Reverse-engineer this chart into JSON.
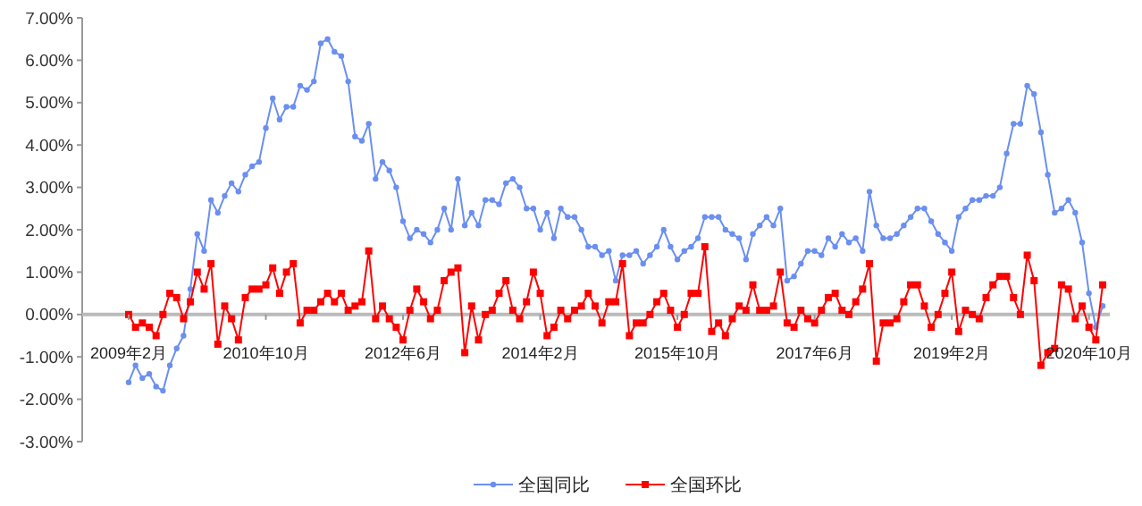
{
  "chart_data": {
    "type": "line",
    "categories": [
      "2009年2月",
      null,
      null,
      null,
      null,
      null,
      null,
      null,
      null,
      null,
      null,
      null,
      null,
      null,
      null,
      null,
      null,
      null,
      null,
      null,
      "2010年10月",
      null,
      null,
      null,
      null,
      null,
      null,
      null,
      null,
      null,
      null,
      null,
      null,
      null,
      null,
      null,
      null,
      null,
      null,
      null,
      "2012年6月",
      null,
      null,
      null,
      null,
      null,
      null,
      null,
      null,
      null,
      null,
      null,
      null,
      null,
      null,
      null,
      null,
      null,
      null,
      null,
      "2014年2月",
      null,
      null,
      null,
      null,
      null,
      null,
      null,
      null,
      null,
      null,
      null,
      null,
      null,
      null,
      null,
      null,
      null,
      null,
      null,
      "2015年10月",
      null,
      null,
      null,
      null,
      null,
      null,
      null,
      null,
      null,
      null,
      null,
      null,
      null,
      null,
      null,
      null,
      null,
      null,
      null,
      "2017年6月",
      null,
      null,
      null,
      null,
      null,
      null,
      null,
      null,
      null,
      null,
      null,
      null,
      null,
      null,
      null,
      null,
      null,
      null,
      null,
      "2019年2月",
      null,
      null,
      null,
      null,
      null,
      null,
      null,
      null,
      null,
      null,
      null,
      null,
      null,
      null,
      null,
      null,
      null,
      null,
      null,
      "2020年10月",
      null,
      null
    ],
    "series": [
      {
        "name": "全国同比",
        "color": "#6b8ff0",
        "marker": "circle",
        "values": [
          -1.6,
          -1.2,
          -1.5,
          -1.4,
          -1.7,
          -1.8,
          -1.2,
          -0.8,
          -0.5,
          0.6,
          1.9,
          1.5,
          2.7,
          2.4,
          2.8,
          3.1,
          2.9,
          3.3,
          3.5,
          3.6,
          4.4,
          5.1,
          4.6,
          4.9,
          4.9,
          5.4,
          5.3,
          5.5,
          6.4,
          6.5,
          6.2,
          6.1,
          5.5,
          4.2,
          4.1,
          4.5,
          3.2,
          3.6,
          3.4,
          3.0,
          2.2,
          1.8,
          2.0,
          1.9,
          1.7,
          2.0,
          2.5,
          2.0,
          3.2,
          2.1,
          2.4,
          2.1,
          2.7,
          2.7,
          2.6,
          3.1,
          3.2,
          3.0,
          2.5,
          2.5,
          2.0,
          2.4,
          1.8,
          2.5,
          2.3,
          2.3,
          2.0,
          1.6,
          1.6,
          1.4,
          1.5,
          0.8,
          1.4,
          1.4,
          1.5,
          1.2,
          1.4,
          1.6,
          2.0,
          1.6,
          1.3,
          1.5,
          1.6,
          1.8,
          2.3,
          2.3,
          2.3,
          2.0,
          1.9,
          1.8,
          1.3,
          1.9,
          2.1,
          2.3,
          2.1,
          2.5,
          0.8,
          0.9,
          1.2,
          1.5,
          1.5,
          1.4,
          1.8,
          1.6,
          1.9,
          1.7,
          1.8,
          1.5,
          2.9,
          2.1,
          1.8,
          1.8,
          1.9,
          2.1,
          2.3,
          2.5,
          2.5,
          2.2,
          1.9,
          1.7,
          1.5,
          2.3,
          2.5,
          2.7,
          2.7,
          2.8,
          2.8,
          3.0,
          3.8,
          4.5,
          4.5,
          5.4,
          5.2,
          4.3,
          3.3,
          2.4,
          2.5,
          2.7,
          2.4,
          1.7,
          0.5,
          -0.3,
          0.2
        ]
      },
      {
        "name": "全国环比",
        "color": "#ff0000",
        "marker": "square",
        "values": [
          0.0,
          -0.3,
          -0.2,
          -0.3,
          -0.5,
          0.0,
          0.5,
          0.4,
          -0.1,
          0.3,
          1.0,
          0.6,
          1.2,
          -0.7,
          0.2,
          -0.1,
          -0.6,
          0.4,
          0.6,
          0.6,
          0.7,
          1.1,
          0.5,
          1.0,
          1.2,
          -0.2,
          0.1,
          0.1,
          0.3,
          0.5,
          0.3,
          0.5,
          0.1,
          0.2,
          0.3,
          1.5,
          -0.1,
          0.2,
          -0.1,
          -0.3,
          -0.6,
          0.1,
          0.6,
          0.3,
          -0.1,
          0.1,
          0.8,
          1.0,
          1.1,
          -0.9,
          0.2,
          -0.6,
          0.0,
          0.1,
          0.5,
          0.8,
          0.1,
          -0.1,
          0.3,
          1.0,
          0.5,
          -0.5,
          -0.3,
          0.1,
          -0.1,
          0.1,
          0.2,
          0.5,
          0.2,
          -0.2,
          0.3,
          0.3,
          1.2,
          -0.5,
          -0.2,
          -0.2,
          0.0,
          0.3,
          0.5,
          0.1,
          -0.3,
          0.0,
          0.5,
          0.5,
          1.6,
          -0.4,
          -0.2,
          -0.5,
          -0.1,
          0.2,
          0.1,
          0.7,
          0.1,
          0.1,
          0.2,
          1.0,
          -0.2,
          -0.3,
          0.1,
          -0.1,
          -0.2,
          0.1,
          0.4,
          0.5,
          0.1,
          0.0,
          0.3,
          0.6,
          1.2,
          -1.1,
          -0.2,
          -0.2,
          -0.1,
          0.3,
          0.7,
          0.7,
          0.2,
          -0.3,
          0.0,
          0.5,
          1.0,
          -0.4,
          0.1,
          0.0,
          -0.1,
          0.4,
          0.7,
          0.9,
          0.9,
          0.4,
          0.0,
          1.4,
          0.8,
          -1.2,
          -0.9,
          -0.8,
          0.7,
          0.6,
          -0.1,
          0.2,
          -0.3,
          -0.6,
          0.7
        ]
      }
    ],
    "ylim": [
      -3,
      7
    ],
    "yticks": [
      {
        "value": -3,
        "label": "-3.00%"
      },
      {
        "value": -2,
        "label": "-2.00%"
      },
      {
        "value": -1,
        "label": "-1.00%"
      },
      {
        "value": 0,
        "label": "0.00%"
      },
      {
        "value": 1,
        "label": "1.00%"
      },
      {
        "value": 2,
        "label": "2.00%"
      },
      {
        "value": 3,
        "label": "3.00%"
      },
      {
        "value": 4,
        "label": "4.00%"
      },
      {
        "value": 5,
        "label": "5.00%"
      },
      {
        "value": 6,
        "label": "6.00%"
      },
      {
        "value": 7,
        "label": "7.00%"
      }
    ],
    "grid": false,
    "legend": "bottom",
    "line_style": "solid"
  }
}
